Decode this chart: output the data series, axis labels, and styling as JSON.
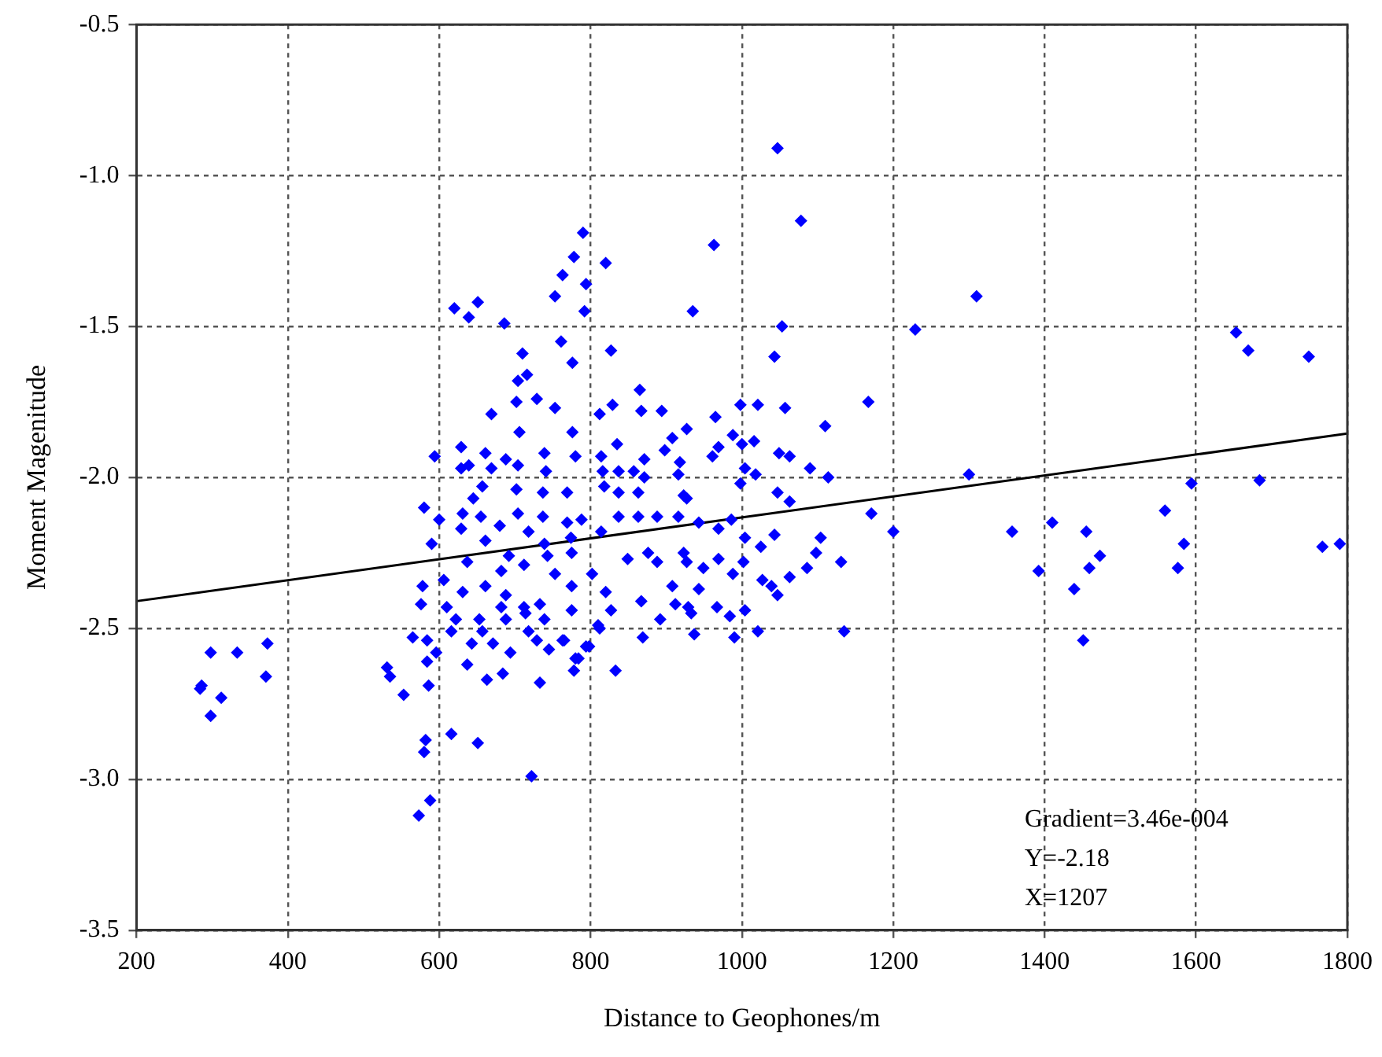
{
  "chart_data": {
    "type": "scatter",
    "xlabel": "Distance to Geophones/m",
    "ylabel": "Moment Magenitude",
    "xlim": [
      200,
      1800
    ],
    "ylim": [
      -3.5,
      -0.5
    ],
    "xticks": [
      200,
      400,
      600,
      800,
      1000,
      1200,
      1400,
      1600,
      1800
    ],
    "yticks": [
      -3.5,
      {
        "value": -3,
        "label": "-3.0"
      },
      -2.5,
      {
        "value": -2,
        "label": "-2.0"
      },
      -1.5,
      {
        "value": -1,
        "label": "-1.0"
      },
      -0.5
    ],
    "grid": true,
    "legend": false,
    "marker": "diamond",
    "annotations": [
      "Gradient=3.46e-004",
      "Y=-2.18",
      "X=1207"
    ],
    "series": [
      {
        "type": "scatter",
        "color": "#0000ff",
        "x": [
          284,
          298,
          333,
          373,
          286,
          312,
          298,
          371,
          531,
          535,
          553,
          565,
          586,
          582,
          580,
          616,
          651,
          722,
          588,
          573,
          576,
          584,
          596,
          584,
          637,
          663,
          684,
          733,
          778,
          784,
          745,
          694,
          671,
          643,
          616,
          631,
          657,
          718,
          729,
          763,
          798,
          810,
          688,
          712,
          682,
          610,
          790,
          778,
          820,
          763,
          794,
          753,
          792,
          620,
          651,
          639,
          686,
          935,
          761,
          827,
          710,
          776,
          716,
          704,
          865,
          729,
          702,
          867,
          753,
          669,
          829,
          894,
          706,
          776,
          812,
          835,
          927,
          908,
          594,
          629,
          661,
          688,
          739,
          780,
          814,
          871,
          898,
          918,
          629,
          639,
          669,
          704,
          741,
          816,
          837,
          857,
          871,
          916,
          657,
          702,
          737,
          769,
          818,
          837,
          863,
          927,
          645,
          580,
          600,
          590,
          631,
          655,
          680,
          704,
          737,
          769,
          788,
          814,
          837,
          863,
          888,
          916,
          629,
          661,
          718,
          739,
          774,
          606,
          578,
          637,
          661,
          682,
          692,
          712,
          743,
          753,
          775,
          775,
          802,
          820,
          849,
          876,
          888,
          908,
          927,
          933,
          912,
          892,
          867,
          827,
          869,
          812,
          775,
          733,
          714,
          688,
          653,
          622,
          739,
          765,
          794,
          780,
          833,
          1047,
          1078,
          963,
          1053,
          1229,
          1043,
          1167,
          1021,
          1057,
          998,
          1110,
          965,
          988,
          1000,
          1016,
          969,
          1049,
          1063,
          961,
          1090,
          1114,
          1004,
          1018,
          998,
          1047,
          1063,
          1171,
          1200,
          1104,
          1043,
          1098,
          1025,
          1131,
          1086,
          1063,
          1027,
          1039,
          1047,
          1004,
          1002,
          988,
          969,
          986,
          943,
          923,
          1004,
          1021,
          990,
          1135,
          967,
          943,
          929,
          969,
          949,
          923,
          937,
          984,
          1310,
          1653,
          1669,
          1749,
          1300,
          1594,
          1684,
          1357,
          1410,
          1455,
          1559,
          1584,
          1767,
          1790,
          1392,
          1473,
          1459,
          1576,
          1439,
          1451
        ],
        "values": [
          -2.7,
          -2.58,
          -2.58,
          -2.55,
          -2.69,
          -2.73,
          -2.79,
          -2.66,
          -2.63,
          -2.66,
          -2.72,
          -2.53,
          -2.69,
          -2.87,
          -2.91,
          -2.85,
          -2.88,
          -2.99,
          -3.07,
          -3.12,
          -2.42,
          -2.54,
          -2.58,
          -2.61,
          -2.62,
          -2.67,
          -2.65,
          -2.68,
          -2.64,
          -2.6,
          -2.57,
          -2.58,
          -2.55,
          -2.55,
          -2.51,
          -2.38,
          -2.51,
          -2.51,
          -2.54,
          -2.54,
          -2.56,
          -2.49,
          -2.39,
          -2.43,
          -2.43,
          -2.43,
          -1.19,
          -1.27,
          -1.29,
          -1.33,
          -1.36,
          -1.4,
          -1.45,
          -1.44,
          -1.42,
          -1.47,
          -1.49,
          -1.45,
          -1.55,
          -1.58,
          -1.59,
          -1.62,
          -1.66,
          -1.68,
          -1.71,
          -1.74,
          -1.75,
          -1.78,
          -1.77,
          -1.79,
          -1.76,
          -1.78,
          -1.85,
          -1.85,
          -1.79,
          -1.89,
          -1.84,
          -1.87,
          -1.93,
          -1.9,
          -1.92,
          -1.94,
          -1.92,
          -1.93,
          -1.93,
          -1.94,
          -1.91,
          -1.95,
          -1.97,
          -1.96,
          -1.97,
          -1.96,
          -1.98,
          -1.98,
          -1.98,
          -1.98,
          -2.0,
          -1.99,
          -2.03,
          -2.04,
          -2.05,
          -2.05,
          -2.03,
          -2.05,
          -2.05,
          -2.07,
          -2.07,
          -2.1,
          -2.14,
          -2.22,
          -2.12,
          -2.13,
          -2.16,
          -2.12,
          -2.13,
          -2.15,
          -2.14,
          -2.18,
          -2.13,
          -2.13,
          -2.13,
          -2.13,
          -2.17,
          -2.21,
          -2.18,
          -2.22,
          -2.2,
          -2.34,
          -2.36,
          -2.28,
          -2.36,
          -2.31,
          -2.26,
          -2.29,
          -2.26,
          -2.32,
          -2.25,
          -2.36,
          -2.32,
          -2.38,
          -2.27,
          -2.25,
          -2.28,
          -2.36,
          -2.28,
          -2.45,
          -2.42,
          -2.47,
          -2.41,
          -2.44,
          -2.53,
          -2.5,
          -2.44,
          -2.42,
          -2.45,
          -2.47,
          -2.47,
          -2.47,
          -2.47,
          -2.54,
          -2.56,
          -2.6,
          -2.64,
          -0.91,
          -1.15,
          -1.23,
          -1.5,
          -1.51,
          -1.6,
          -1.75,
          -1.76,
          -1.77,
          -1.76,
          -1.83,
          -1.8,
          -1.86,
          -1.89,
          -1.88,
          -1.9,
          -1.92,
          -1.93,
          -1.93,
          -1.97,
          -2.0,
          -1.97,
          -1.99,
          -2.02,
          -2.05,
          -2.08,
          -2.12,
          -2.18,
          -2.2,
          -2.19,
          -2.25,
          -2.23,
          -2.28,
          -2.3,
          -2.33,
          -2.34,
          -2.36,
          -2.39,
          -2.2,
          -2.28,
          -2.32,
          -2.17,
          -2.14,
          -2.15,
          -2.06,
          -2.44,
          -2.51,
          -2.53,
          -2.51,
          -2.43,
          -2.37,
          -2.43,
          -2.27,
          -2.3,
          -2.25,
          -2.52,
          -2.46,
          -1.4,
          -1.52,
          -1.58,
          -1.6,
          -1.99,
          -2.02,
          -2.01,
          -2.18,
          -2.15,
          -2.18,
          -2.11,
          -2.22,
          -2.23,
          -2.22,
          -2.31,
          -2.26,
          -2.3,
          -2.3,
          -2.37,
          -2.54
        ]
      },
      {
        "type": "line",
        "color": "#000000",
        "marker": "none",
        "x": [
          200,
          1800
        ],
        "values": [
          -2.41,
          -1.855
        ]
      }
    ]
  }
}
